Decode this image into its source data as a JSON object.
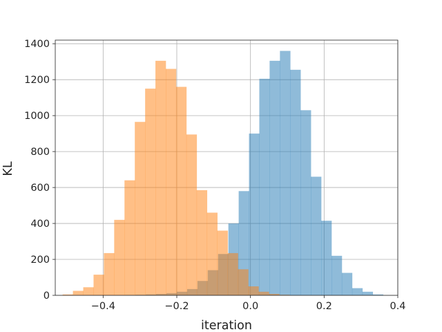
{
  "chart_data": {
    "type": "bar",
    "title": "",
    "xlabel": "iteration",
    "ylabel": "KL",
    "xlim": [
      -0.53,
      0.4
    ],
    "ylim": [
      0,
      1420
    ],
    "grid": true,
    "legend": "none",
    "x_ticks": [
      -0.4,
      -0.2,
      0.0,
      0.2,
      0.4
    ],
    "x_tick_labels": [
      "−0.4",
      "−0.2",
      "0.0",
      "0.2",
      "0.4"
    ],
    "y_ticks": [
      0,
      200,
      400,
      600,
      800,
      1000,
      1200,
      1400
    ],
    "y_tick_labels": [
      "0",
      "200",
      "400",
      "600",
      "800",
      "1000",
      "1200",
      "1400"
    ],
    "series": [
      {
        "color": "#1f77b4",
        "opacity": 0.5,
        "bin_edges": [
          -0.34,
          -0.312,
          -0.284,
          -0.256,
          -0.228,
          -0.2,
          -0.172,
          -0.144,
          -0.116,
          -0.088,
          -0.06,
          -0.032,
          -0.004,
          0.024,
          0.052,
          0.08,
          0.108,
          0.136,
          0.164,
          0.192,
          0.22,
          0.248,
          0.276,
          0.304,
          0.332,
          0.36
        ],
        "counts": [
          2,
          3,
          5,
          8,
          12,
          20,
          35,
          80,
          140,
          230,
          400,
          580,
          900,
          1205,
          1305,
          1360,
          1255,
          1030,
          660,
          415,
          220,
          125,
          40,
          20,
          5
        ]
      },
      {
        "color": "#ff7f0e",
        "opacity": 0.5,
        "bin_edges": [
          -0.51,
          -0.482,
          -0.454,
          -0.426,
          -0.398,
          -0.37,
          -0.342,
          -0.314,
          -0.286,
          -0.258,
          -0.23,
          -0.202,
          -0.174,
          -0.146,
          -0.118,
          -0.09,
          -0.062,
          -0.034,
          -0.006,
          0.022,
          0.05,
          0.078,
          0.106
        ],
        "counts": [
          5,
          25,
          45,
          115,
          235,
          420,
          640,
          965,
          1150,
          1305,
          1260,
          1160,
          895,
          585,
          460,
          360,
          235,
          145,
          50,
          20,
          8,
          3
        ]
      }
    ]
  }
}
